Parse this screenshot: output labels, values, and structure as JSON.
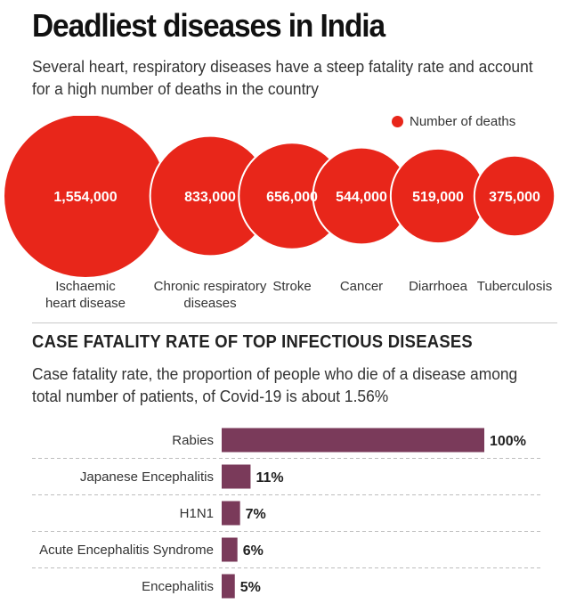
{
  "header": {
    "title": "Deadliest diseases in India",
    "subtitle": "Several heart, respiratory diseases have a steep fatality rate and account for a high number of deaths in the country"
  },
  "colors": {
    "bubble": "#e8261a",
    "bar": "#7a3a5a"
  },
  "chart_data": [
    {
      "type": "bubble",
      "legend": "Number of deaths",
      "legend_position": "top-right",
      "categories": [
        [
          "Ischaemic",
          "heart disease"
        ],
        [
          "Chronic respiratory",
          "diseases"
        ],
        [
          "Stroke"
        ],
        [
          "Cancer"
        ],
        [
          "Diarrhoea"
        ],
        [
          "Tuberculosis"
        ]
      ],
      "values": [
        1554000,
        833000,
        656000,
        544000,
        519000,
        375000
      ],
      "labels": [
        "1,554,000",
        "833,000",
        "656,000",
        "544,000",
        "519,000",
        "375,000"
      ]
    },
    {
      "type": "bar",
      "title": "CASE FATALITY RATE OF TOP INFECTIOUS DISEASES",
      "subtitle": "Case fatality rate, the proportion of people who die of a disease among total number of patients, of Covid-19 is about 1.56%",
      "categories": [
        "Rabies",
        "Japanese Encephalitis",
        "H1N1",
        "Acute Encephalitis Syndrome",
        "Encephalitis"
      ],
      "values": [
        100,
        11,
        7,
        6,
        5
      ],
      "labels": [
        "100%",
        "11%",
        "7%",
        "6%",
        "5%"
      ],
      "xlim": [
        0,
        100
      ],
      "grid": false
    }
  ]
}
